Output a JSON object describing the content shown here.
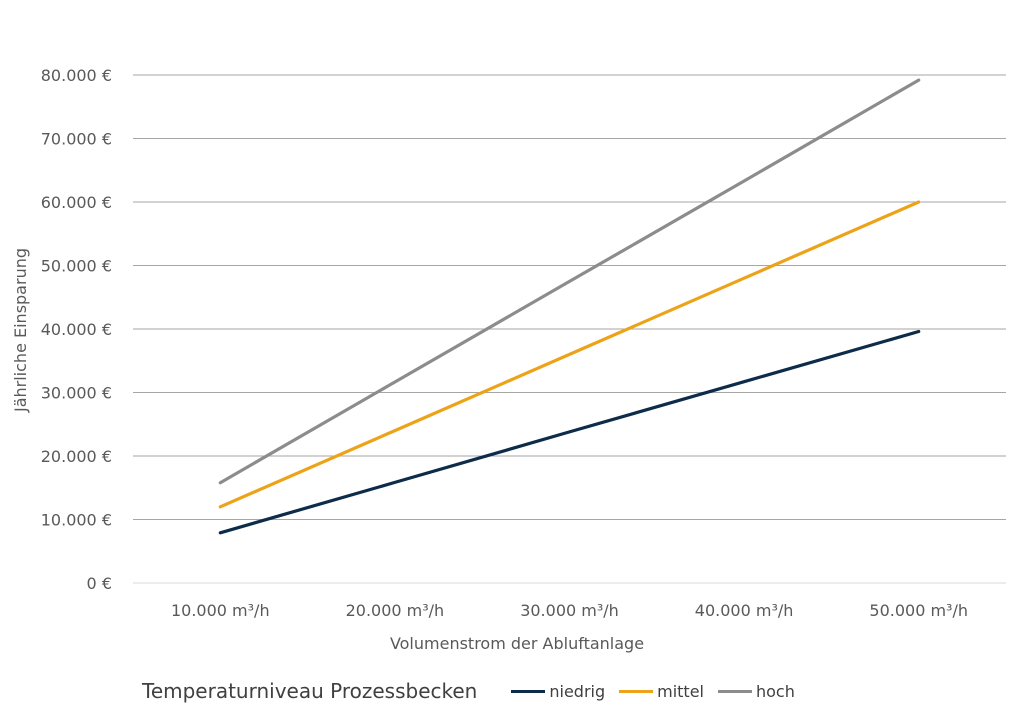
{
  "chart_data": {
    "type": "line",
    "title": "",
    "xlabel": "Volumenstrom der Abluftanlage",
    "ylabel": "Jährliche Einsparung",
    "categories": [
      "10.000 m³/h",
      "20.000 m³/h",
      "30.000 m³/h",
      "40.000 m³/h",
      "50.000 m³/h"
    ],
    "x": [
      10000,
      20000,
      30000,
      40000,
      50000
    ],
    "ylim": [
      0,
      80000
    ],
    "yticks": [
      0,
      10000,
      20000,
      30000,
      40000,
      50000,
      60000,
      70000,
      80000
    ],
    "ytick_labels": [
      "0 €",
      "10.000 €",
      "20.000 €",
      "30.000 €",
      "40.000 €",
      "50.000 €",
      "60.000 €",
      "70.000 €",
      "80.000 €"
    ],
    "grid": true,
    "legend_title": "Temperaturniveau Prozessbecken",
    "legend_position": "bottom",
    "series": [
      {
        "name": "niedrig",
        "color": "#0d2c4a",
        "values": [
          7900,
          15850,
          23800,
          31700,
          39600
        ]
      },
      {
        "name": "mittel",
        "color": "#eda318",
        "values": [
          12000,
          24000,
          36000,
          48000,
          60000
        ]
      },
      {
        "name": "hoch",
        "color": "#8c8c8c",
        "values": [
          15800,
          31650,
          47500,
          63300,
          79200
        ]
      }
    ]
  }
}
